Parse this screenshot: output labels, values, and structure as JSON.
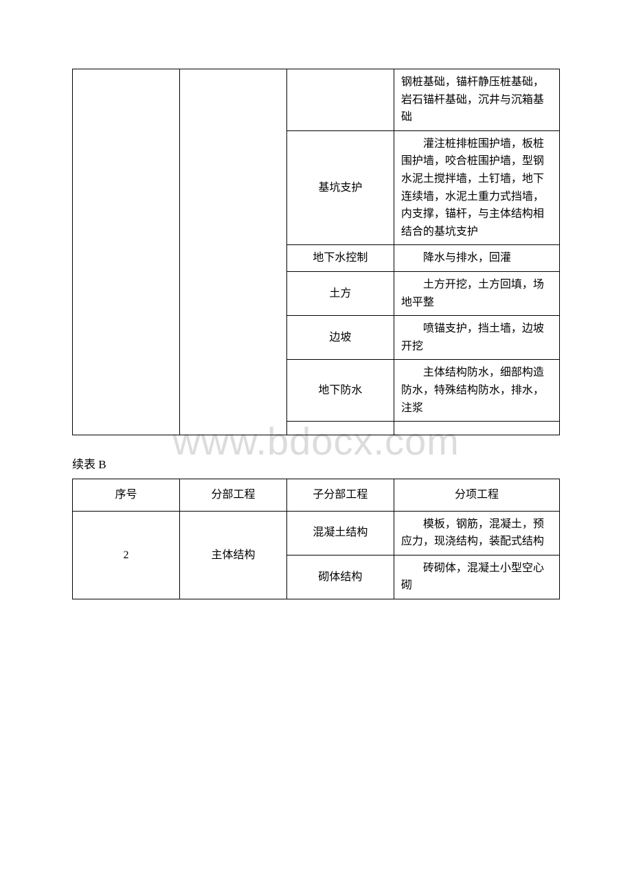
{
  "watermark": "www.bdocx.com",
  "table1": {
    "rows": [
      {
        "c3": "",
        "c4": "钢桩基础，锚杆静压桩基础，岩石锚杆基础，沉井与沉箱基础"
      },
      {
        "c3": "基坑支护",
        "c4": "　　灌注桩排桩围护墙，板桩围护墙，咬合桩围护墙，型钢水泥土搅拌墙，土钉墙，地下连续墙，水泥土重力式挡墙，内支撑，锚杆，与主体结构相结合的基坑支护"
      },
      {
        "c3": "地下水控制",
        "c4": "　　降水与排水，回灌"
      },
      {
        "c3": "土方",
        "c4": "　　土方开挖，土方回填，场地平整"
      },
      {
        "c3": "边坡",
        "c4": "　　喷锚支护，挡土墙，边坡开挖"
      },
      {
        "c3": "地下防水",
        "c4": "　　主体结构防水，细部构造防水，特殊结构防水，排水，注浆"
      }
    ]
  },
  "caption": "续表 B",
  "table2": {
    "headers": {
      "c1": "序号",
      "c2": "分部工程",
      "c3": "子分部工程",
      "c4": "分项工程"
    },
    "row1": {
      "c1": "2",
      "c2": "主体结构",
      "c3": "混凝土结构",
      "c4": "　　模板，钢筋，混凝土，预应力，现浇结构，装配式结构"
    },
    "row2": {
      "c3": "砌体结构",
      "c4": "　　砖砌体，混凝土小型空心砌"
    }
  }
}
